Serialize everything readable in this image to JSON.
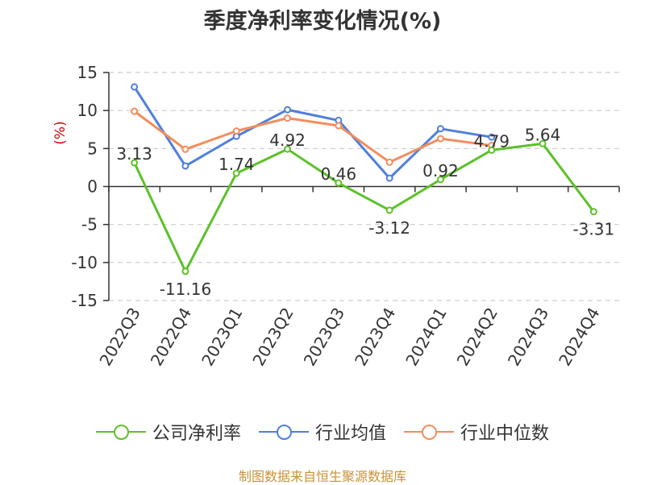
{
  "title": "季度净利率变化情况(%)",
  "source_label": "制图数据来自恒生聚源数据库",
  "chart_data": {
    "type": "line",
    "title": "季度净利率变化情况(%)",
    "ylabel": "(%)",
    "xlabel": "",
    "ylim": [
      -15,
      15
    ],
    "y_ticks": [
      15,
      10,
      5,
      0,
      -5,
      -10,
      -15
    ],
    "y_tick_labels": [
      "15",
      "10",
      "5",
      "0",
      "-5",
      "-10",
      "-15"
    ],
    "grid": true,
    "legend_position": "bottom",
    "categories": [
      "2022Q3",
      "2022Q4",
      "2023Q1",
      "2023Q2",
      "2023Q3",
      "2023Q4",
      "2024Q1",
      "2024Q2",
      "2024Q3",
      "2024Q4"
    ],
    "series": [
      {
        "name": "公司净利率",
        "color": "#5cc12a",
        "values": [
          3.13,
          -11.16,
          1.74,
          4.92,
          0.46,
          -3.12,
          0.92,
          4.79,
          5.64,
          -3.31
        ],
        "labels": [
          "3.13",
          "-11.16",
          "1.74",
          "4.92",
          "0.46",
          "-3.12",
          "0.92",
          "4.79",
          "5.64",
          "-3.31"
        ]
      },
      {
        "name": "行业均值",
        "color": "#4f7fdc",
        "values": [
          13.1,
          2.7,
          6.6,
          10.1,
          8.7,
          1.1,
          7.6,
          6.5,
          null,
          null
        ]
      },
      {
        "name": "行业中位数",
        "color": "#f28d5c",
        "values": [
          9.9,
          4.9,
          7.3,
          9.0,
          8.0,
          3.2,
          6.3,
          5.4,
          null,
          null
        ]
      }
    ]
  }
}
